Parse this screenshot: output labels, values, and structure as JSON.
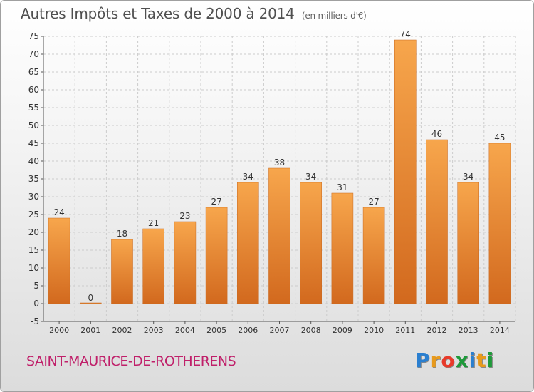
{
  "header": {
    "title": "Autres Impôts et Taxes de 2000 à 2014",
    "unit": "(en milliers d'€)"
  },
  "footer": {
    "commune": "SAINT-MAURICE-DE-ROTHERENS",
    "logo_letters": [
      "P",
      "r",
      "o",
      "x",
      "i",
      "t",
      "i"
    ],
    "logo_colors": [
      "#2a7fd0",
      "#e89a1c",
      "#e83a2a",
      "#1e9a3a",
      "#2a7fd0",
      "#e89a1c",
      "#1e9a3a"
    ]
  },
  "colors": {
    "bar_light": "#f7a64c",
    "bar_dark": "#d2691e",
    "grid": "#cccccc",
    "axis_text": "#333333"
  },
  "chart_data": {
    "type": "bar",
    "title": "Autres Impôts et Taxes de 2000 à 2014",
    "subtitle": "(en milliers d'€)",
    "categories": [
      "2000",
      "2001",
      "2002",
      "2003",
      "2004",
      "2005",
      "2006",
      "2007",
      "2008",
      "2009",
      "2010",
      "2011",
      "2012",
      "2013",
      "2014"
    ],
    "values": [
      24,
      0,
      18,
      21,
      23,
      27,
      34,
      38,
      34,
      31,
      27,
      74,
      46,
      34,
      45
    ],
    "ylim": [
      -5,
      75
    ],
    "yticks": [
      -5,
      0,
      5,
      10,
      15,
      20,
      25,
      30,
      35,
      40,
      45,
      50,
      55,
      60,
      65,
      70,
      75
    ],
    "grid": true,
    "data_labels": true
  }
}
